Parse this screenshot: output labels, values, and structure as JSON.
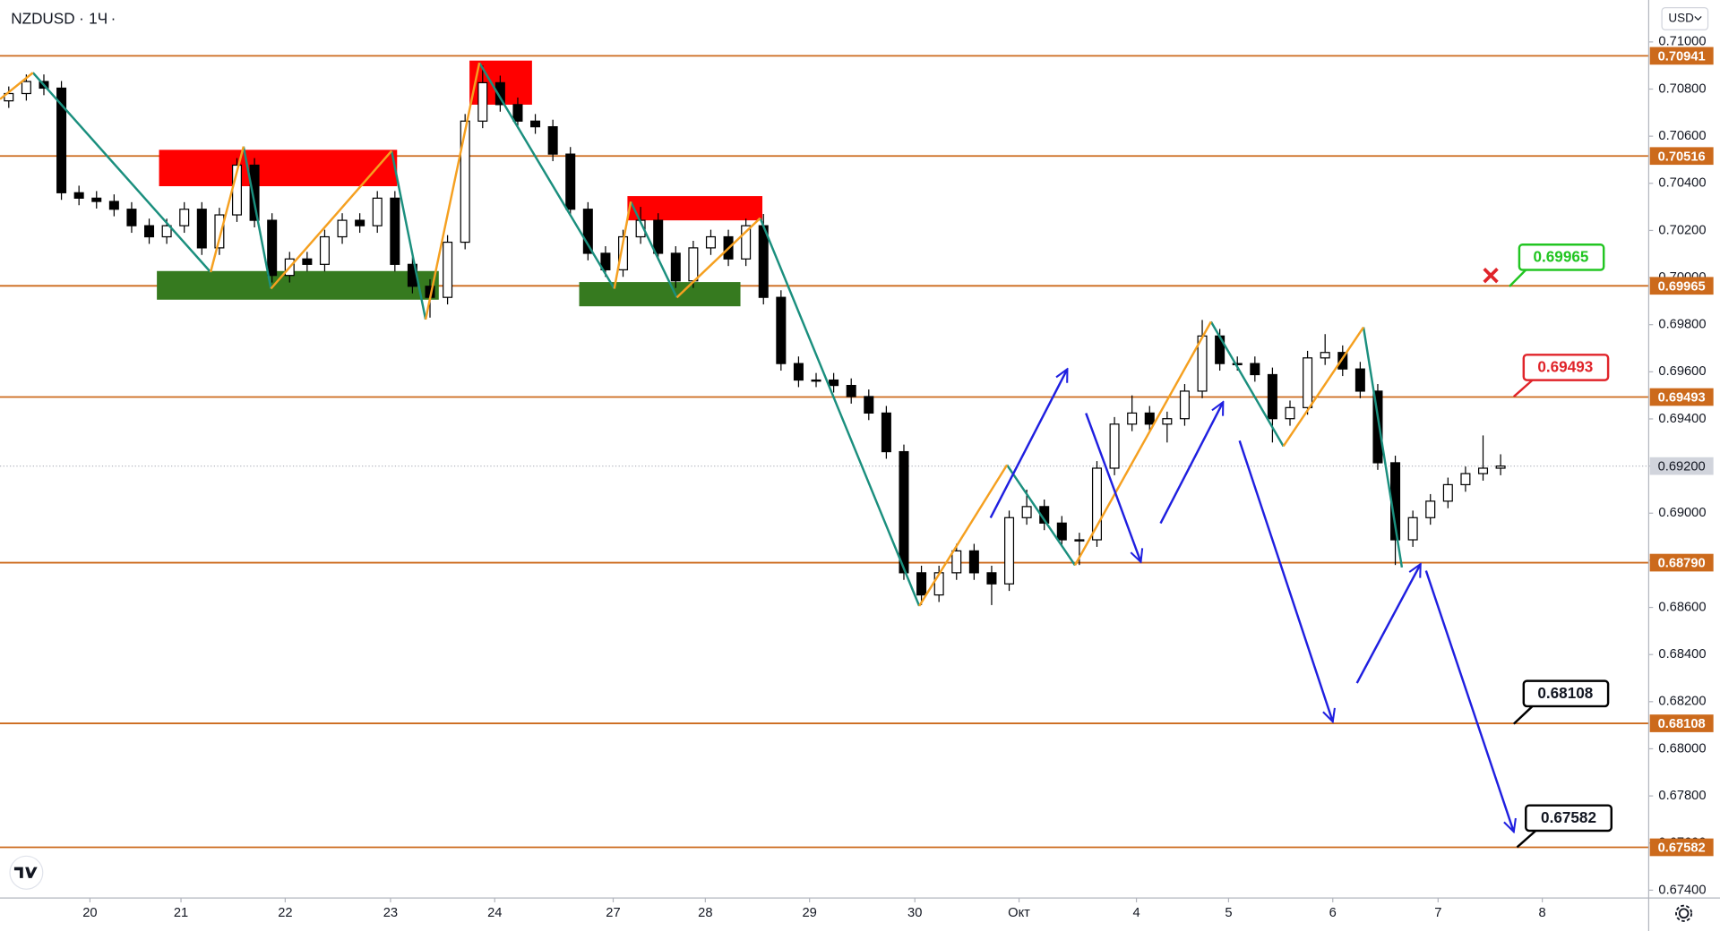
{
  "chart_data": {
    "type": "candlestick",
    "title": "NZDUSD",
    "interval": "1Ч",
    "currency": "USD",
    "up_color": "#ffffff",
    "down_color": "#000000",
    "wick_color": "#000000",
    "level_color": "#cc6a1c",
    "xlim": [
      0,
      375.75
    ],
    "ylim": [
      0.67367,
      0.71178
    ],
    "xticks": [
      {
        "value": 20.5,
        "label": "20"
      },
      {
        "value": 41.25,
        "label": "21"
      },
      {
        "value": 65,
        "label": "22"
      },
      {
        "value": 89,
        "label": "23"
      },
      {
        "value": 112.75,
        "label": "24"
      },
      {
        "value": 139.75,
        "label": "27"
      },
      {
        "value": 160.75,
        "label": "28"
      },
      {
        "value": 184.5,
        "label": "29"
      },
      {
        "value": 208.5,
        "label": "30"
      },
      {
        "value": 232.25,
        "label": "Окт"
      },
      {
        "value": 259,
        "label": "4"
      },
      {
        "value": 280,
        "label": "5"
      },
      {
        "value": 303.75,
        "label": "6"
      },
      {
        "value": 327.75,
        "label": "7"
      },
      {
        "value": 351.5,
        "label": "8"
      }
    ],
    "yticks": [
      {
        "value": 0.71,
        "label": "0.71000"
      },
      {
        "value": 0.708,
        "label": "0.70800"
      },
      {
        "value": 0.706,
        "label": "0.70600"
      },
      {
        "value": 0.704,
        "label": "0.70400"
      },
      {
        "value": 0.702,
        "label": "0.70200"
      },
      {
        "value": 0.7,
        "label": "0.70000"
      },
      {
        "value": 0.698,
        "label": "0.69800"
      },
      {
        "value": 0.696,
        "label": "0.69600"
      },
      {
        "value": 0.694,
        "label": "0.69400"
      },
      {
        "value": 0.692,
        "label": "0.69200"
      },
      {
        "value": 0.69,
        "label": "0.69000"
      },
      {
        "value": 0.688,
        "label": "0.68800"
      },
      {
        "value": 0.686,
        "label": "0.68600"
      },
      {
        "value": 0.684,
        "label": "0.68400"
      },
      {
        "value": 0.682,
        "label": "0.68200"
      },
      {
        "value": 0.68,
        "label": "0.68000"
      },
      {
        "value": 0.678,
        "label": "0.67800"
      },
      {
        "value": 0.676,
        "label": "0.67600"
      },
      {
        "value": 0.674,
        "label": "0.67400"
      }
    ],
    "levels": [
      {
        "value": 0.70941,
        "label": "0.70941"
      },
      {
        "value": 0.70516,
        "label": "0.70516"
      },
      {
        "value": 0.69965,
        "label": "0.69965"
      },
      {
        "value": 0.69493,
        "label": "0.69493"
      },
      {
        "value": 0.6879,
        "label": "0.68790"
      },
      {
        "value": 0.68108,
        "label": "0.68108"
      },
      {
        "value": 0.67582,
        "label": "0.67582"
      }
    ],
    "last_price": {
      "value": 0.692,
      "label": "0.69200"
    },
    "x": [
      2,
      6,
      10,
      14,
      18,
      22,
      26,
      30,
      34,
      38,
      42,
      46,
      50,
      54,
      58,
      62,
      66,
      70,
      74,
      78,
      82,
      86,
      90,
      94,
      98,
      102,
      106,
      110,
      114,
      118,
      122,
      126,
      130,
      134,
      138,
      142,
      146,
      150,
      154,
      158,
      162,
      166,
      170,
      174,
      178,
      182,
      186,
      190,
      194,
      198,
      202,
      206,
      210,
      214,
      218,
      222,
      226,
      230,
      234,
      238,
      242,
      246,
      250,
      254,
      258,
      262,
      266,
      270,
      274,
      278,
      282,
      286,
      290,
      294,
      298,
      302,
      306,
      310,
      314,
      318,
      322,
      326,
      330,
      334,
      338,
      342
    ],
    "open": [
      0.7075,
      0.70781,
      0.70832,
      0.70804,
      0.7036,
      0.70337,
      0.70323,
      0.7029,
      0.7022,
      0.70173,
      0.7022,
      0.7029,
      0.70126,
      0.70266,
      0.70477,
      0.70243,
      0.70009,
      0.70079,
      0.70056,
      0.70173,
      0.70243,
      0.7022,
      0.70337,
      0.70056,
      0.69963,
      0.69916,
      0.7015,
      0.70664,
      0.70827,
      0.70734,
      0.70664,
      0.7064,
      0.70524,
      0.7029,
      0.70103,
      0.70033,
      0.70173,
      0.70243,
      0.70103,
      0.69986,
      0.70126,
      0.70173,
      0.70079,
      0.7022,
      0.69916,
      0.69635,
      0.69565,
      0.69565,
      0.69542,
      0.69495,
      0.69425,
      0.69261,
      0.68747,
      0.68653,
      0.68747,
      0.6884,
      0.68747,
      0.687,
      0.68981,
      0.69028,
      0.68958,
      0.68887,
      0.68887,
      0.69191,
      0.69378,
      0.69425,
      0.69378,
      0.69401,
      0.69518,
      0.69752,
      0.69635,
      0.69635,
      0.69588,
      0.69401,
      0.69448,
      0.69659,
      0.69682,
      0.69612,
      0.69518,
      0.69214,
      0.68887,
      0.68981,
      0.69051,
      0.69121,
      0.69168,
      0.69191
    ],
    "high": [
      0.70811,
      0.70862,
      0.70862,
      0.70834,
      0.7039,
      0.70367,
      0.70353,
      0.7032,
      0.7025,
      0.7025,
      0.7032,
      0.7032,
      0.70296,
      0.70507,
      0.70507,
      0.70273,
      0.70109,
      0.70109,
      0.70203,
      0.70273,
      0.70273,
      0.70367,
      0.70367,
      0.70086,
      0.69993,
      0.7018,
      0.70694,
      0.709,
      0.70857,
      0.70764,
      0.70694,
      0.7067,
      0.70554,
      0.7032,
      0.70133,
      0.70203,
      0.703,
      0.70273,
      0.70133,
      0.70156,
      0.70203,
      0.70203,
      0.7025,
      0.7027,
      0.69946,
      0.69665,
      0.69595,
      0.69595,
      0.69572,
      0.69525,
      0.69455,
      0.69291,
      0.68777,
      0.68777,
      0.6887,
      0.6887,
      0.68777,
      0.69011,
      0.691,
      0.69058,
      0.68988,
      0.68917,
      0.69221,
      0.69408,
      0.695,
      0.69455,
      0.69431,
      0.69548,
      0.6982,
      0.69782,
      0.69665,
      0.69665,
      0.69618,
      0.69478,
      0.69689,
      0.6976,
      0.69712,
      0.69642,
      0.69548,
      0.69244,
      0.69011,
      0.69081,
      0.69151,
      0.69198,
      0.6933,
      0.6925
    ],
    "low": [
      0.7072,
      0.70751,
      0.70774,
      0.7033,
      0.70307,
      0.70293,
      0.7026,
      0.7019,
      0.70143,
      0.70143,
      0.7019,
      0.70096,
      0.70096,
      0.70236,
      0.70213,
      0.69979,
      0.69979,
      0.70026,
      0.70026,
      0.70143,
      0.7019,
      0.7019,
      0.70026,
      0.69933,
      0.6983,
      0.69886,
      0.7012,
      0.70634,
      0.70704,
      0.70634,
      0.7061,
      0.70494,
      0.7026,
      0.70073,
      0.70003,
      0.70003,
      0.70143,
      0.70073,
      0.69956,
      0.69956,
      0.70096,
      0.70049,
      0.70049,
      0.69886,
      0.69605,
      0.69535,
      0.69535,
      0.69512,
      0.69465,
      0.69395,
      0.69231,
      0.68717,
      0.6861,
      0.68623,
      0.68717,
      0.68717,
      0.6861,
      0.6867,
      0.68951,
      0.68928,
      0.68857,
      0.6878,
      0.68857,
      0.69161,
      0.69348,
      0.69348,
      0.693,
      0.69371,
      0.69488,
      0.69605,
      0.69605,
      0.69558,
      0.693,
      0.69371,
      0.69418,
      0.69629,
      0.69582,
      0.69488,
      0.69184,
      0.6878,
      0.68857,
      0.68951,
      0.69021,
      0.69091,
      0.69138,
      0.69161
    ],
    "close": [
      0.70781,
      0.70832,
      0.70804,
      0.7036,
      0.70337,
      0.70323,
      0.7029,
      0.7022,
      0.70173,
      0.7022,
      0.7029,
      0.70126,
      0.70266,
      0.70477,
      0.70243,
      0.70009,
      0.70079,
      0.70056,
      0.70173,
      0.70243,
      0.7022,
      0.70337,
      0.70056,
      0.69963,
      0.69916,
      0.7015,
      0.70664,
      0.70827,
      0.70734,
      0.70664,
      0.7064,
      0.70524,
      0.7029,
      0.70103,
      0.70033,
      0.70173,
      0.70243,
      0.70103,
      0.69986,
      0.70126,
      0.70173,
      0.70079,
      0.7022,
      0.69916,
      0.69635,
      0.69565,
      0.69565,
      0.69542,
      0.69495,
      0.69425,
      0.69261,
      0.68747,
      0.68653,
      0.68747,
      0.6884,
      0.68747,
      0.687,
      0.68981,
      0.69028,
      0.68958,
      0.68887,
      0.68887,
      0.69191,
      0.69378,
      0.69425,
      0.69378,
      0.69401,
      0.69518,
      0.69752,
      0.69635,
      0.69635,
      0.69588,
      0.69401,
      0.69448,
      0.69659,
      0.69682,
      0.69612,
      0.69518,
      0.69214,
      0.68887,
      0.68981,
      0.69051,
      0.69121,
      0.69168,
      0.69191,
      0.692
    ]
  }
}
